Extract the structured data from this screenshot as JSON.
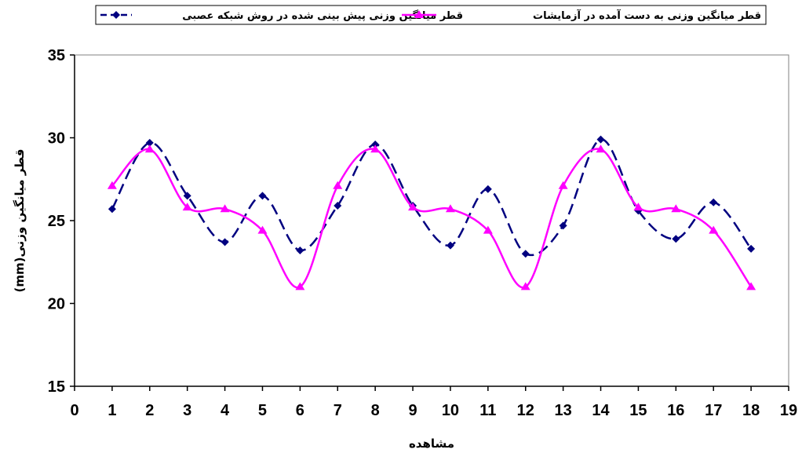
{
  "chart_data": {
    "type": "line",
    "title": "",
    "xlabel": "مشاهده",
    "ylabel": "قطر میانگین وزنی(mm)",
    "xlim": [
      0,
      19
    ],
    "ylim": [
      15,
      35
    ],
    "x_ticks": [
      0,
      1,
      2,
      3,
      4,
      5,
      6,
      7,
      8,
      9,
      10,
      11,
      12,
      13,
      14,
      15,
      16,
      17,
      18,
      19
    ],
    "y_ticks": [
      15,
      20,
      25,
      30,
      35
    ],
    "grid": false,
    "legend_position": "top",
    "series": [
      {
        "name": "قطر میانگین وزنی به دست آمده در آزمایشات",
        "color": "#000080",
        "line_style": "dashed",
        "marker": "diamond",
        "x": [
          1,
          2,
          3,
          4,
          5,
          6,
          7,
          8,
          9,
          10,
          11,
          12,
          13,
          14,
          15,
          16,
          17,
          18
        ],
        "values": [
          25.7,
          29.7,
          26.5,
          23.7,
          26.5,
          23.2,
          25.9,
          29.6,
          25.9,
          23.5,
          26.9,
          23.0,
          24.7,
          29.9,
          25.6,
          23.9,
          26.1,
          23.3
        ]
      },
      {
        "name": "قطر میانگین وزنی پیش بینی شده در روش شبکه عصبی",
        "color": "#ff00ff",
        "line_style": "solid",
        "marker": "triangle",
        "x": [
          1,
          2,
          3,
          4,
          5,
          6,
          7,
          8,
          9,
          10,
          11,
          12,
          13,
          14,
          15,
          16,
          17,
          18
        ],
        "values": [
          27.1,
          29.3,
          25.8,
          25.7,
          24.4,
          21.0,
          27.1,
          29.3,
          25.8,
          25.7,
          24.4,
          21.0,
          27.1,
          29.3,
          25.8,
          25.7,
          24.4,
          21.0
        ]
      }
    ]
  }
}
